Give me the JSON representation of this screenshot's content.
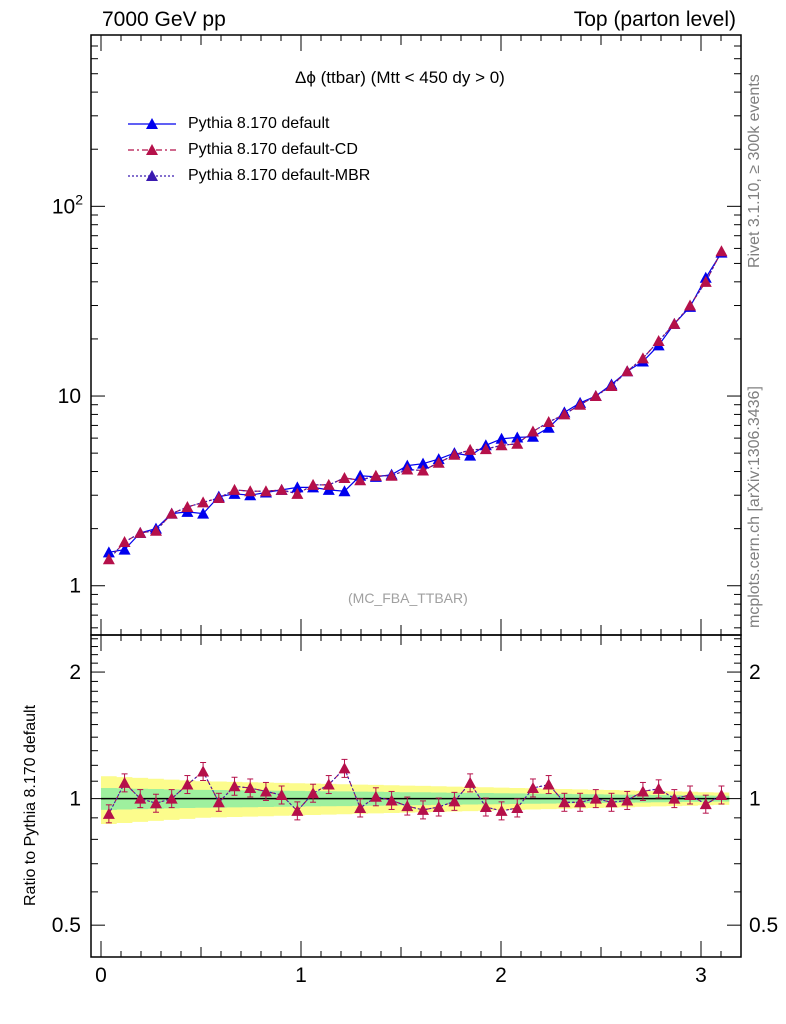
{
  "header": {
    "left": "7000 GeV pp",
    "right": "Top (parton level)"
  },
  "side_labels": {
    "rivet": "Rivet 3.1.10, ≥ 300k events",
    "mcplots": "mcplots.cern.ch [arXiv:1306.3436]"
  },
  "watermark": "(MC_FBA_TTBAR)",
  "colors": {
    "default": "#0000ee",
    "cd": "#b5104a",
    "mbr": "#3a1ab0",
    "band_green": "#9ef09e",
    "band_yellow": "#fcfc8c"
  },
  "chart_data": [
    {
      "type": "line",
      "title": "Δϕ (ttbar) (Mtt < 450 dy > 0)",
      "xlabel": "",
      "ylabel": "",
      "xlim": [
        -0.05,
        3.2
      ],
      "ylim": [
        0.55,
        800
      ],
      "y_scale": "log",
      "y_ticks": [
        "1",
        "10",
        "10^2"
      ],
      "legend_position": "top-left",
      "grid": false,
      "x": [
        0.0393,
        0.1178,
        0.1963,
        0.2749,
        0.3534,
        0.432,
        0.5105,
        0.589,
        0.6676,
        0.7461,
        0.8247,
        0.9032,
        0.9817,
        1.0603,
        1.1388,
        1.2174,
        1.2959,
        1.3744,
        1.453,
        1.5315,
        1.6101,
        1.6886,
        1.7671,
        1.8457,
        1.9242,
        2.0028,
        2.0813,
        2.1598,
        2.2384,
        2.3169,
        2.3955,
        2.474,
        2.5525,
        2.6311,
        2.7096,
        2.7882,
        2.8667,
        2.9452,
        3.0238,
        3.1023
      ],
      "series": [
        {
          "name": "Pythia 8.170 default",
          "values": [
            1.5,
            1.55,
            1.9,
            2.0,
            2.4,
            2.45,
            2.4,
            2.95,
            3.05,
            3.0,
            3.1,
            3.2,
            3.3,
            3.3,
            3.2,
            3.15,
            3.8,
            3.75,
            3.85,
            4.3,
            4.4,
            4.65,
            5.0,
            4.85,
            5.5,
            5.95,
            6.05,
            6.1,
            6.8,
            8.2,
            9.2,
            10.0,
            11.5,
            13.5,
            15.2,
            18.5,
            24.0,
            29.5,
            42.0,
            57.0
          ]
        },
        {
          "name": "Pythia 8.170 default-CD",
          "values": [
            1.38,
            1.7,
            1.9,
            1.95,
            2.4,
            2.6,
            2.75,
            2.9,
            3.2,
            3.15,
            3.15,
            3.2,
            3.05,
            3.4,
            3.4,
            3.7,
            3.6,
            3.8,
            3.8,
            4.1,
            4.05,
            4.45,
            4.9,
            5.2,
            5.25,
            5.5,
            5.6,
            6.5,
            7.3,
            8.0,
            9.0,
            10.0,
            11.3,
            13.5,
            15.8,
            19.5,
            24.0,
            30.0,
            40.0,
            58.0
          ]
        },
        {
          "name": "Pythia 8.170 default-MBR",
          "values": [
            1.38,
            1.7,
            1.9,
            1.95,
            2.4,
            2.6,
            2.75,
            2.9,
            3.2,
            3.15,
            3.15,
            3.2,
            3.05,
            3.4,
            3.4,
            3.7,
            3.6,
            3.8,
            3.8,
            4.1,
            4.05,
            4.45,
            4.9,
            5.2,
            5.25,
            5.5,
            5.6,
            6.5,
            7.3,
            8.0,
            9.0,
            10.0,
            11.3,
            13.5,
            15.8,
            19.5,
            24.0,
            30.0,
            40.0,
            58.0
          ]
        }
      ]
    },
    {
      "type": "line",
      "title": "",
      "xlabel": "",
      "ylabel": "Ratio to Pythia 8.170 default",
      "xlim": [
        -0.05,
        3.2
      ],
      "ylim": [
        0.42,
        2.45
      ],
      "y_scale": "log",
      "y_ticks": [
        "0.5",
        "1",
        "2"
      ],
      "x_ticks": [
        "0",
        "1",
        "2",
        "3"
      ],
      "grid": false,
      "reference_line": 1,
      "band_green_halfwidth": [
        0.06,
        0.058,
        0.056,
        0.054,
        0.052,
        0.05,
        0.049,
        0.048,
        0.047,
        0.046,
        0.045,
        0.044,
        0.043,
        0.042,
        0.041,
        0.04,
        0.039,
        0.038,
        0.037,
        0.036,
        0.035,
        0.034,
        0.033,
        0.032,
        0.031,
        0.03,
        0.029,
        0.028,
        0.027,
        0.026,
        0.025,
        0.024,
        0.023,
        0.022,
        0.021,
        0.02,
        0.019,
        0.018,
        0.017,
        0.016
      ],
      "band_yellow_halfwidth": [
        0.13,
        0.125,
        0.12,
        0.115,
        0.11,
        0.105,
        0.1,
        0.098,
        0.096,
        0.094,
        0.092,
        0.09,
        0.088,
        0.086,
        0.084,
        0.082,
        0.08,
        0.078,
        0.076,
        0.074,
        0.072,
        0.07,
        0.068,
        0.066,
        0.064,
        0.062,
        0.06,
        0.058,
        0.056,
        0.054,
        0.052,
        0.05,
        0.048,
        0.046,
        0.044,
        0.042,
        0.04,
        0.038,
        0.036,
        0.034
      ],
      "series": [
        {
          "name": "Pythia 8.170 default-CD",
          "values": [
            0.92,
            1.09,
            1.0,
            0.975,
            1.0,
            1.08,
            1.16,
            0.98,
            1.07,
            1.06,
            1.04,
            1.02,
            0.935,
            1.03,
            1.08,
            1.18,
            0.95,
            1.01,
            0.99,
            0.96,
            0.94,
            0.955,
            0.985,
            1.09,
            0.955,
            0.935,
            0.95,
            1.06,
            1.08,
            0.98,
            0.98,
            1.0,
            0.98,
            0.99,
            1.04,
            1.055,
            1.0,
            1.02,
            0.97,
            1.02
          ]
        },
        {
          "name": "Pythia 8.170 default-MBR",
          "values": [
            0.92,
            1.09,
            1.0,
            0.975,
            1.0,
            1.08,
            1.16,
            0.98,
            1.07,
            1.06,
            1.04,
            1.02,
            0.935,
            1.03,
            1.08,
            1.18,
            0.95,
            1.01,
            0.99,
            0.96,
            0.94,
            0.955,
            0.985,
            1.09,
            0.955,
            0.935,
            0.95,
            1.06,
            1.08,
            0.98,
            0.98,
            1.0,
            0.98,
            0.99,
            1.04,
            1.055,
            1.0,
            1.02,
            0.97,
            1.02
          ]
        }
      ]
    }
  ]
}
